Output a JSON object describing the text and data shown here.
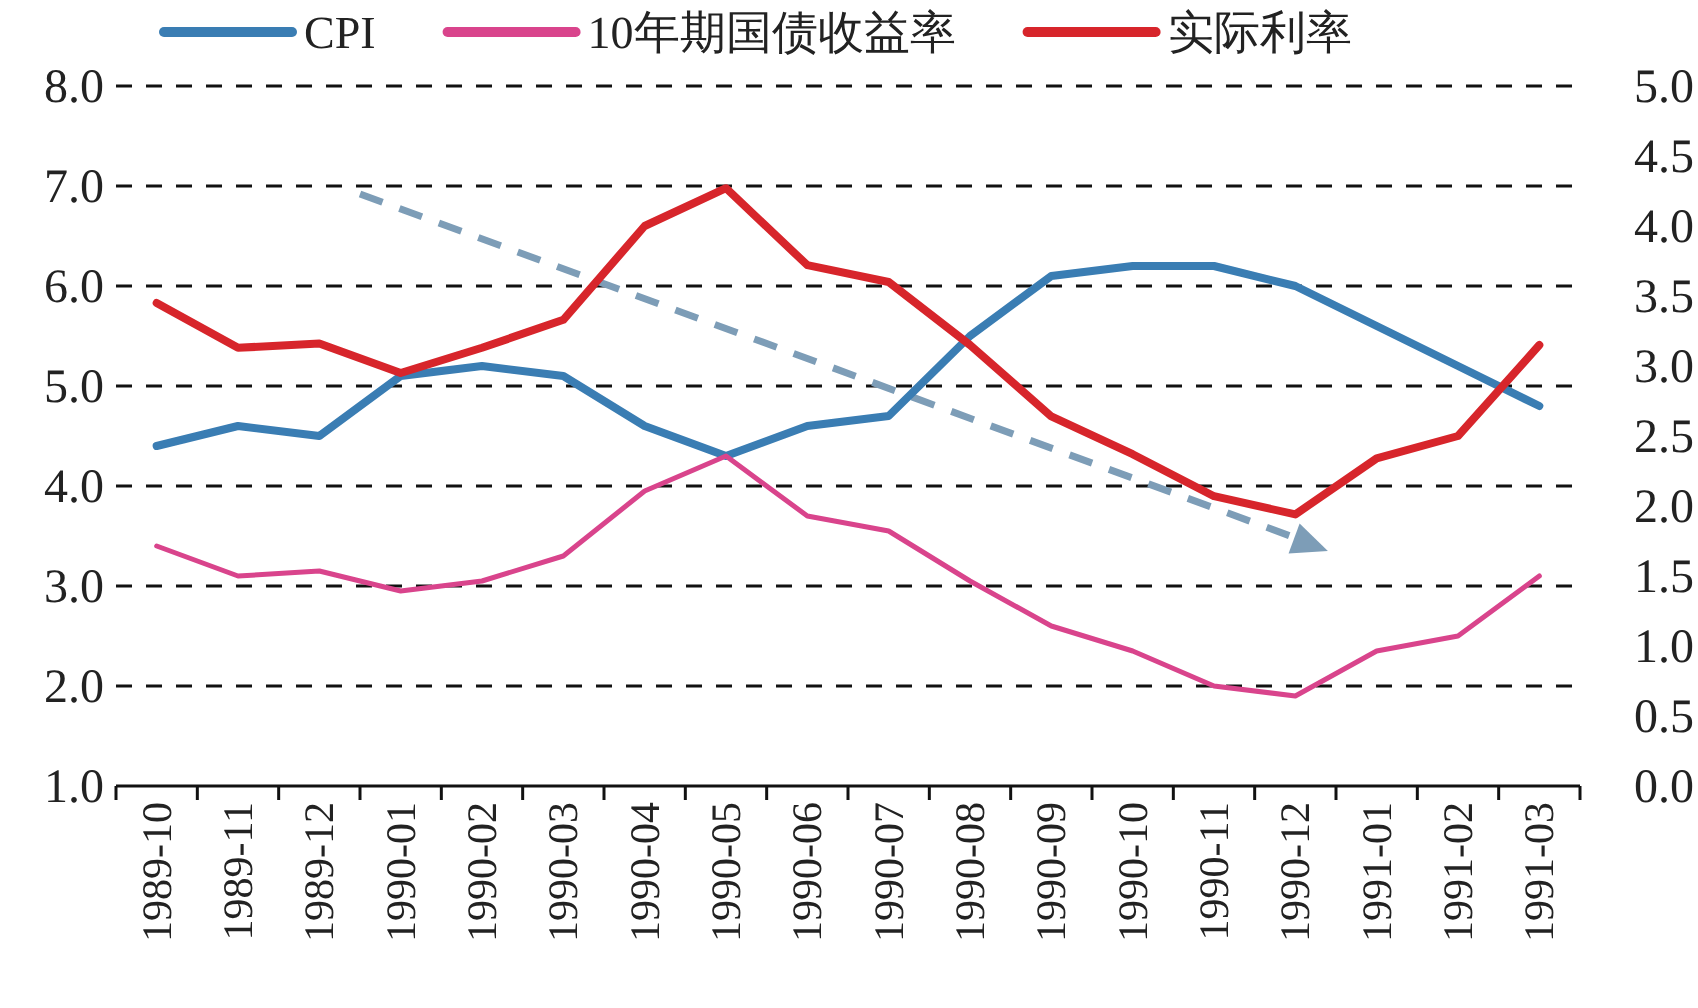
{
  "chart_data": {
    "type": "line",
    "categories": [
      "1989-10",
      "1989-11",
      "1989-12",
      "1990-01",
      "1990-02",
      "1990-03",
      "1990-04",
      "1990-05",
      "1990-06",
      "1990-07",
      "1990-08",
      "1990-09",
      "1990-10",
      "1990-11",
      "1990-12",
      "1991-01",
      "1991-02",
      "1991-03"
    ],
    "series": [
      {
        "name": "CPI",
        "color": "#3a7db3",
        "values": [
          4.4,
          4.6,
          4.5,
          5.1,
          5.2,
          5.1,
          4.6,
          4.3,
          4.6,
          4.7,
          5.5,
          6.1,
          6.2,
          6.2,
          6.0,
          5.6,
          5.2,
          4.8
        ]
      },
      {
        "name": "10年期国债收益率",
        "color": "#d9448c",
        "values": [
          3.4,
          3.1,
          3.15,
          2.95,
          3.05,
          3.3,
          3.95,
          4.3,
          3.7,
          3.55,
          3.05,
          2.6,
          2.35,
          2.0,
          1.9,
          2.35,
          2.5,
          3.1
        ]
      },
      {
        "name": "实际利率",
        "color": "#d7252b",
        "axis": "y2",
        "values": [
          3.45,
          3.13,
          3.16,
          2.95,
          3.13,
          3.33,
          4.0,
          4.27,
          3.72,
          3.6,
          3.15,
          2.64,
          2.37,
          2.07,
          1.94,
          2.34,
          2.5,
          3.15
        ]
      }
    ],
    "ylim": [
      1,
      8
    ],
    "yticks": [
      {
        "value": 1,
        "label": "1.0"
      },
      {
        "value": 2,
        "label": "2.0"
      },
      {
        "value": 3,
        "label": "3.0"
      },
      {
        "value": 4,
        "label": "4.0"
      },
      {
        "value": 5,
        "label": "5.0"
      },
      {
        "value": 6,
        "label": "6.0"
      },
      {
        "value": 7,
        "label": "7.0"
      },
      {
        "value": 8,
        "label": "8.0"
      }
    ],
    "y2lim": [
      0,
      5
    ],
    "y2ticks": [
      {
        "value": 0,
        "label": "0.0"
      },
      {
        "value": 0.5,
        "label": "0.5"
      },
      {
        "value": 1,
        "label": "1.0"
      },
      {
        "value": 1.5,
        "label": "1.5"
      },
      {
        "value": 2,
        "label": "2.0"
      },
      {
        "value": 2.5,
        "label": "2.5"
      },
      {
        "value": 3,
        "label": "3.0"
      },
      {
        "value": 3.5,
        "label": "3.5"
      },
      {
        "value": 4,
        "label": "4.0"
      },
      {
        "value": 4.5,
        "label": "4.5"
      },
      {
        "value": 5,
        "label": "5.0"
      }
    ],
    "grid": "y",
    "legend": "top"
  }
}
